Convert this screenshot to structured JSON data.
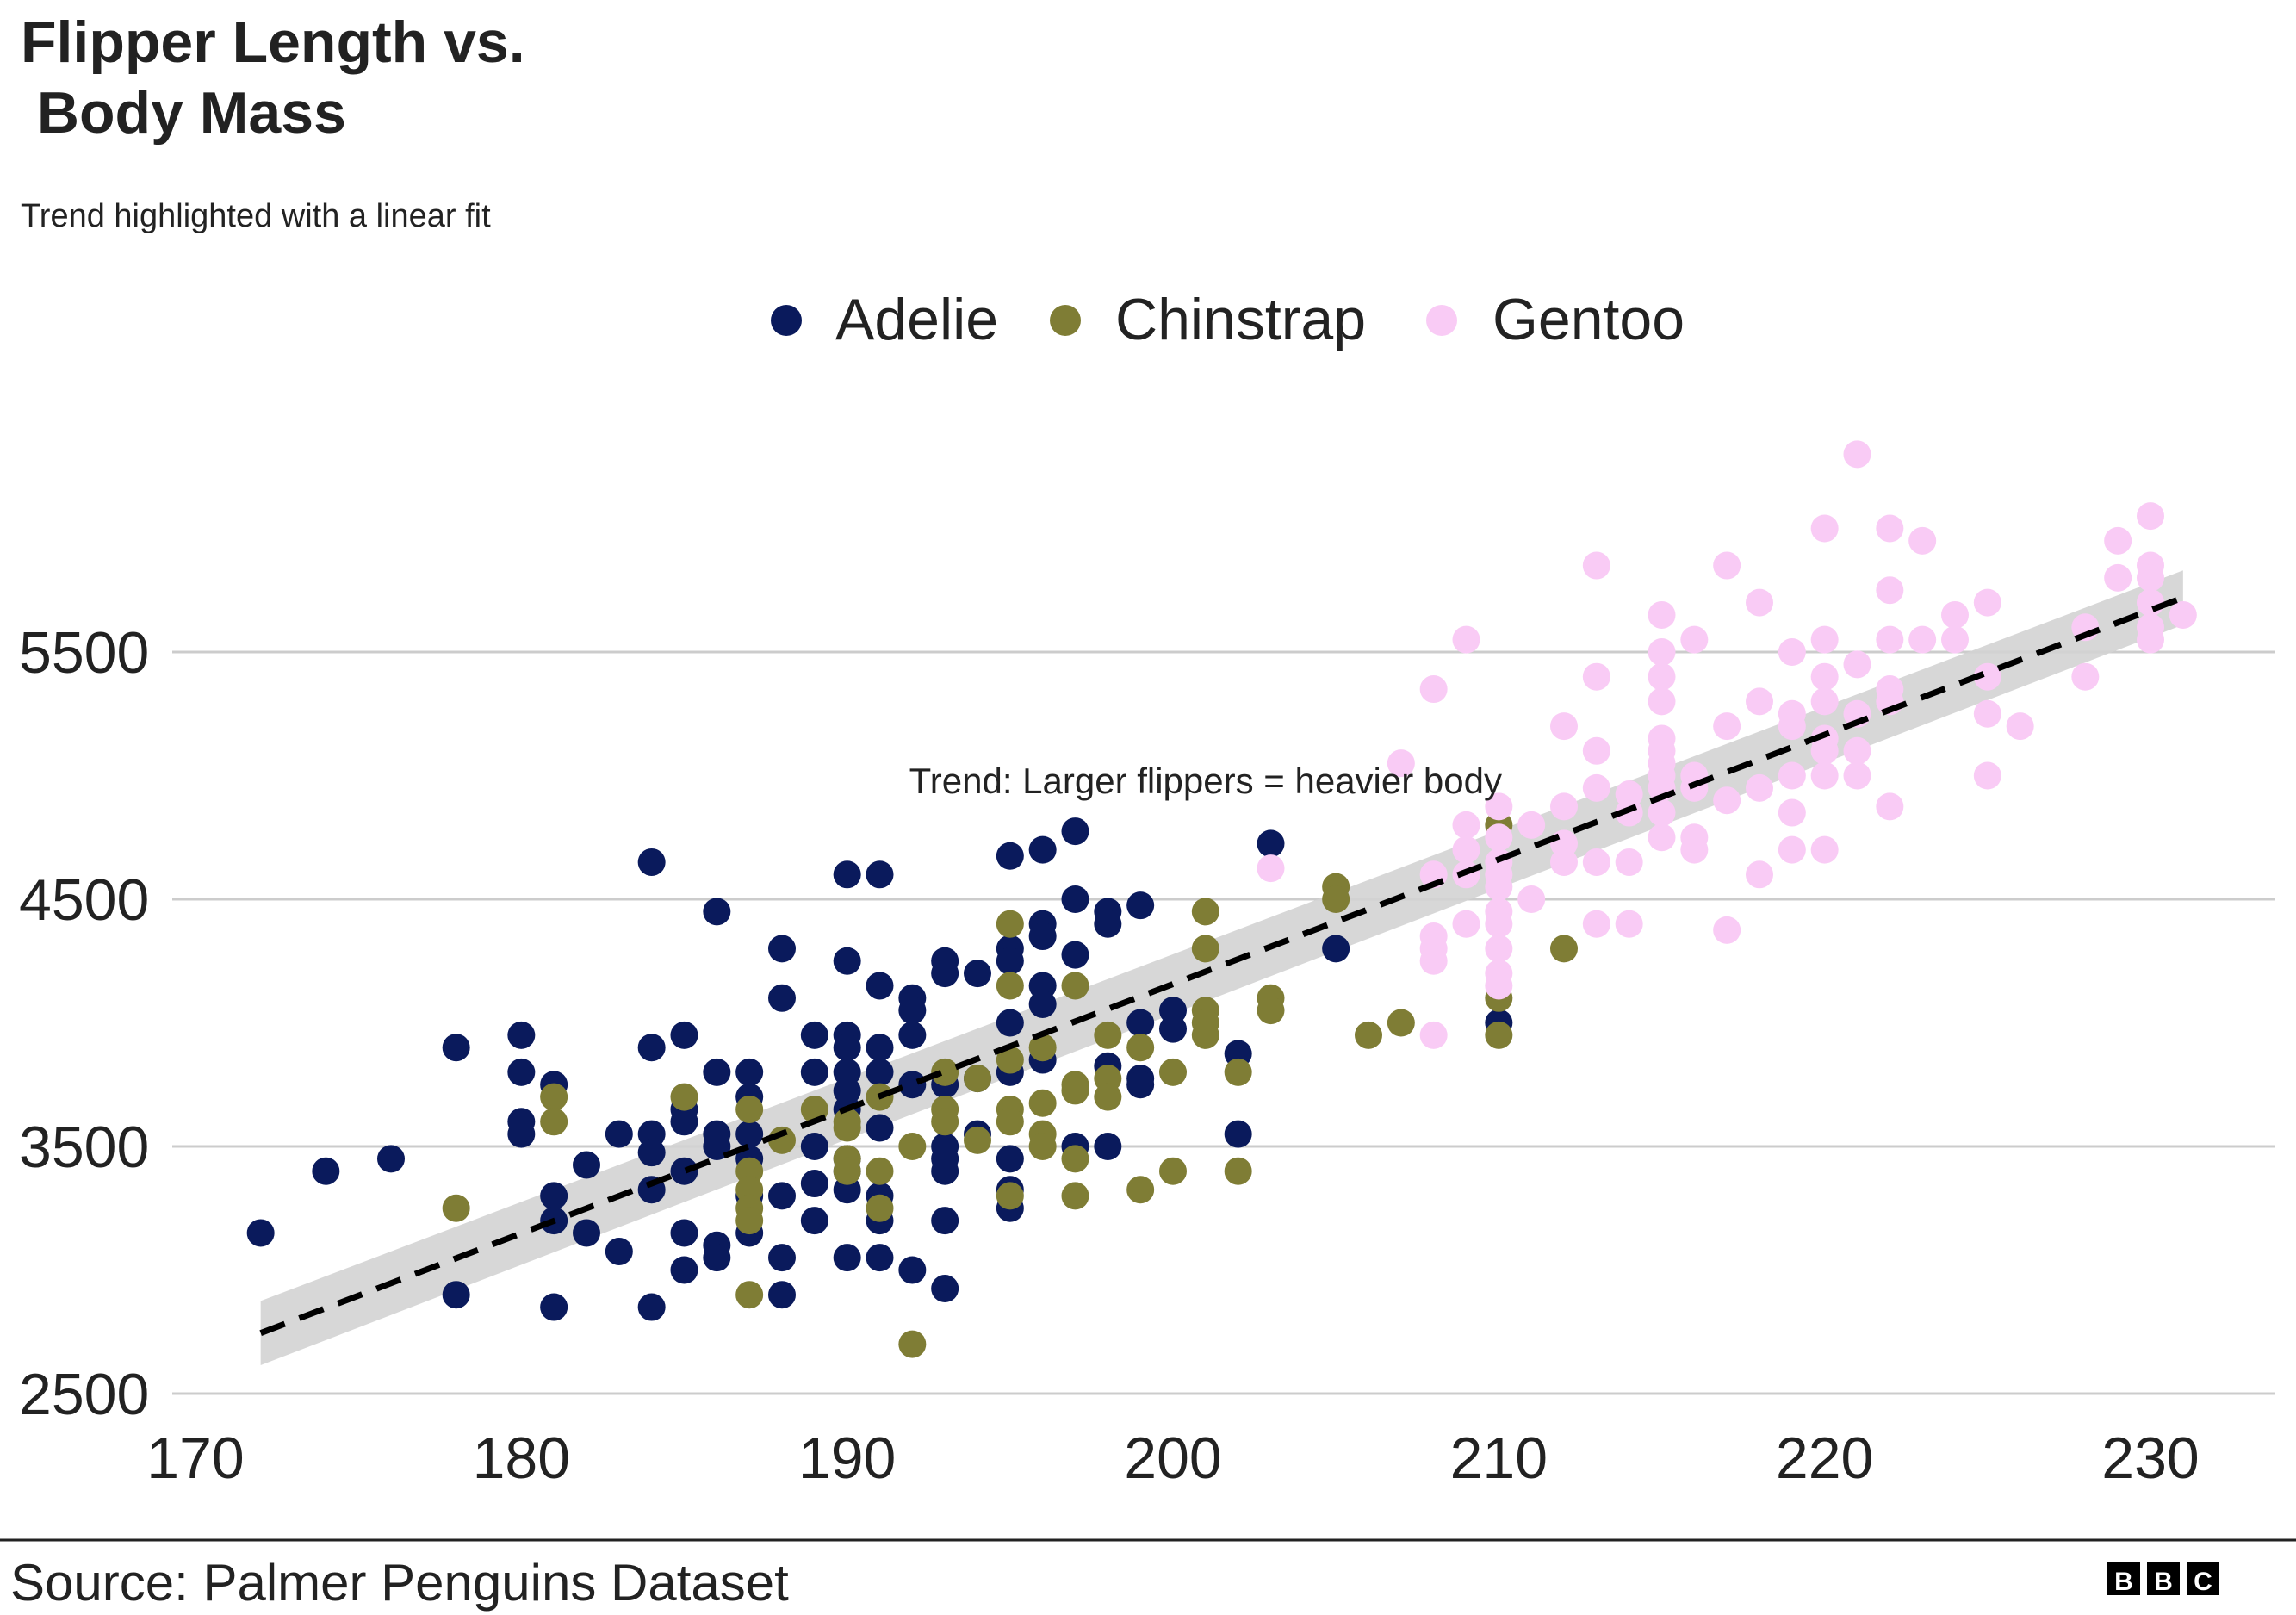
{
  "header": {
    "title_line1": "Flipper Length vs.",
    "title_line2": " Body Mass",
    "subtitle": "Trend highlighted with a linear fit"
  },
  "footer": {
    "source": "Source: Palmer Penguins Dataset",
    "logo_letters": [
      "B",
      "B",
      "C"
    ]
  },
  "colors": {
    "Adelie": "#0a1a5c",
    "Chinstrap": "#7f7d35",
    "Gentoo": "#f9cbf5",
    "grid": "#cccccc",
    "trend_line": "#000000",
    "confidence_band": "#d3d3d3"
  },
  "chart_data": {
    "type": "scatter",
    "title": "Flipper Length vs.  Body Mass",
    "subtitle": "Trend highlighted with a linear fit",
    "xlabel": "",
    "ylabel": "",
    "xlim": [
      170,
      234
    ],
    "ylim": [
      2500,
      6550
    ],
    "x_ticks": [
      170,
      180,
      190,
      200,
      210,
      220,
      230
    ],
    "y_ticks": [
      2500,
      3500,
      4500,
      5500
    ],
    "grid": "horizontal",
    "legend_position": "top-center",
    "annotation": {
      "text": "Trend: Larger flippers = heavier body",
      "x": 201,
      "y": 4950
    },
    "trend": {
      "type": "linear",
      "x": [
        172,
        231
      ],
      "y": [
        2745,
        5720
      ],
      "band_halfwidth": 100
    },
    "series": [
      {
        "name": "Adelie",
        "points": [
          [
            172,
            3150
          ],
          [
            174,
            3400
          ],
          [
            176,
            3450
          ],
          [
            178,
            3900
          ],
          [
            178,
            2900
          ],
          [
            180,
            3950
          ],
          [
            180,
            3800
          ],
          [
            180,
            3600
          ],
          [
            180,
            3550
          ],
          [
            181,
            3750
          ],
          [
            181,
            3300
          ],
          [
            181,
            3200
          ],
          [
            181,
            2850
          ],
          [
            182,
            3425
          ],
          [
            182,
            3150
          ],
          [
            183,
            3550
          ],
          [
            183,
            3075
          ],
          [
            184,
            4650
          ],
          [
            184,
            3900
          ],
          [
            184,
            3550
          ],
          [
            184,
            3475
          ],
          [
            184,
            3325
          ],
          [
            184,
            2850
          ],
          [
            185,
            3950
          ],
          [
            185,
            3650
          ],
          [
            185,
            3600
          ],
          [
            185,
            3400
          ],
          [
            185,
            3150
          ],
          [
            185,
            3000
          ],
          [
            186,
            4450
          ],
          [
            186,
            3800
          ],
          [
            186,
            3550
          ],
          [
            186,
            3500
          ],
          [
            186,
            3100
          ],
          [
            186,
            3050
          ],
          [
            187,
            3800
          ],
          [
            187,
            3700
          ],
          [
            187,
            3550
          ],
          [
            187,
            3450
          ],
          [
            187,
            3300
          ],
          [
            187,
            3150
          ],
          [
            188,
            4300
          ],
          [
            188,
            4100
          ],
          [
            188,
            3300
          ],
          [
            188,
            3050
          ],
          [
            188,
            2900
          ],
          [
            189,
            3950
          ],
          [
            189,
            3800
          ],
          [
            189,
            3500
          ],
          [
            189,
            3350
          ],
          [
            189,
            3200
          ],
          [
            190,
            4600
          ],
          [
            190,
            4250
          ],
          [
            190,
            3950
          ],
          [
            190,
            3900
          ],
          [
            190,
            3800
          ],
          [
            190,
            3725
          ],
          [
            190,
            3650
          ],
          [
            190,
            3450
          ],
          [
            190,
            3400
          ],
          [
            190,
            3325
          ],
          [
            190,
            3050
          ],
          [
            191,
            4600
          ],
          [
            191,
            4150
          ],
          [
            191,
            3900
          ],
          [
            191,
            3800
          ],
          [
            191,
            3575
          ],
          [
            191,
            3300
          ],
          [
            191,
            3200
          ],
          [
            191,
            3050
          ],
          [
            192,
            4100
          ],
          [
            192,
            4050
          ],
          [
            192,
            3950
          ],
          [
            192,
            3750
          ],
          [
            192,
            3000
          ],
          [
            193,
            4250
          ],
          [
            193,
            4200
          ],
          [
            193,
            3750
          ],
          [
            193,
            3500
          ],
          [
            193,
            3450
          ],
          [
            193,
            3400
          ],
          [
            193,
            3200
          ],
          [
            193,
            2925
          ],
          [
            194,
            4200
          ],
          [
            194,
            3775
          ],
          [
            194,
            3550
          ],
          [
            195,
            4675
          ],
          [
            195,
            4300
          ],
          [
            195,
            4250
          ],
          [
            195,
            4000
          ],
          [
            195,
            3800
          ],
          [
            195,
            3450
          ],
          [
            195,
            3325
          ],
          [
            195,
            3250
          ],
          [
            196,
            4700
          ],
          [
            196,
            4400
          ],
          [
            196,
            4350
          ],
          [
            196,
            4150
          ],
          [
            196,
            4075
          ],
          [
            196,
            3850
          ],
          [
            197,
            4775
          ],
          [
            197,
            4500
          ],
          [
            197,
            4275
          ],
          [
            197,
            3500
          ],
          [
            198,
            4450
          ],
          [
            198,
            4400
          ],
          [
            198,
            3825
          ],
          [
            198,
            3500
          ],
          [
            199,
            4475
          ],
          [
            199,
            4000
          ],
          [
            199,
            3775
          ],
          [
            199,
            3750
          ],
          [
            200,
            4050
          ],
          [
            200,
            3975
          ],
          [
            202,
            3875
          ],
          [
            202,
            3550
          ],
          [
            203,
            4725
          ],
          [
            205,
            4300
          ],
          [
            210,
            4000
          ]
        ]
      },
      {
        "name": "Chinstrap",
        "points": [
          [
            178,
            3250
          ],
          [
            181,
            3700
          ],
          [
            181,
            3600
          ],
          [
            185,
            3700
          ],
          [
            187,
            3650
          ],
          [
            187,
            3400
          ],
          [
            187,
            3325
          ],
          [
            187,
            3250
          ],
          [
            187,
            3200
          ],
          [
            187,
            2900
          ],
          [
            188,
            3525
          ],
          [
            189,
            3650
          ],
          [
            190,
            3600
          ],
          [
            190,
            3575
          ],
          [
            190,
            3450
          ],
          [
            190,
            3400
          ],
          [
            191,
            3700
          ],
          [
            191,
            3400
          ],
          [
            191,
            3250
          ],
          [
            192,
            3500
          ],
          [
            192,
            2700
          ],
          [
            193,
            3800
          ],
          [
            193,
            3650
          ],
          [
            193,
            3600
          ],
          [
            194,
            3775
          ],
          [
            194,
            3525
          ],
          [
            195,
            4400
          ],
          [
            195,
            4150
          ],
          [
            195,
            3850
          ],
          [
            195,
            3650
          ],
          [
            195,
            3600
          ],
          [
            195,
            3300
          ],
          [
            196,
            3900
          ],
          [
            196,
            3675
          ],
          [
            196,
            3550
          ],
          [
            196,
            3500
          ],
          [
            197,
            4150
          ],
          [
            197,
            3750
          ],
          [
            197,
            3725
          ],
          [
            197,
            3450
          ],
          [
            197,
            3300
          ],
          [
            198,
            3950
          ],
          [
            198,
            3775
          ],
          [
            198,
            3700
          ],
          [
            199,
            3900
          ],
          [
            199,
            3325
          ],
          [
            200,
            3800
          ],
          [
            200,
            3400
          ],
          [
            201,
            4450
          ],
          [
            201,
            4300
          ],
          [
            201,
            4050
          ],
          [
            201,
            4000
          ],
          [
            201,
            3950
          ],
          [
            202,
            3800
          ],
          [
            202,
            3400
          ],
          [
            203,
            4100
          ],
          [
            203,
            4050
          ],
          [
            205,
            4550
          ],
          [
            205,
            4500
          ],
          [
            206,
            3950
          ],
          [
            207,
            4000
          ],
          [
            210,
            4800
          ],
          [
            210,
            4100
          ],
          [
            210,
            3950
          ],
          [
            212,
            4300
          ]
        ]
      },
      {
        "name": "Gentoo",
        "points": [
          [
            203,
            4625
          ],
          [
            207,
            5050
          ],
          [
            208,
            5350
          ],
          [
            208,
            4600
          ],
          [
            208,
            4350
          ],
          [
            208,
            4300
          ],
          [
            208,
            4250
          ],
          [
            208,
            3950
          ],
          [
            209,
            5550
          ],
          [
            209,
            4800
          ],
          [
            209,
            4700
          ],
          [
            209,
            4600
          ],
          [
            209,
            4400
          ],
          [
            210,
            4875
          ],
          [
            210,
            4750
          ],
          [
            210,
            4650
          ],
          [
            210,
            4600
          ],
          [
            210,
            4550
          ],
          [
            210,
            4450
          ],
          [
            210,
            4400
          ],
          [
            210,
            4300
          ],
          [
            210,
            4200
          ],
          [
            210,
            4150
          ],
          [
            211,
            4800
          ],
          [
            211,
            4500
          ],
          [
            212,
            5200
          ],
          [
            212,
            4875
          ],
          [
            212,
            4725
          ],
          [
            212,
            4650
          ],
          [
            213,
            5850
          ],
          [
            213,
            5400
          ],
          [
            213,
            5100
          ],
          [
            213,
            4950
          ],
          [
            213,
            4650
          ],
          [
            213,
            4400
          ],
          [
            214,
            4925
          ],
          [
            214,
            4850
          ],
          [
            214,
            4650
          ],
          [
            214,
            4400
          ],
          [
            215,
            5650
          ],
          [
            215,
            5500
          ],
          [
            215,
            5400
          ],
          [
            215,
            5300
          ],
          [
            215,
            5150
          ],
          [
            215,
            5100
          ],
          [
            215,
            5050
          ],
          [
            215,
            5000
          ],
          [
            215,
            4950
          ],
          [
            215,
            4850
          ],
          [
            215,
            4750
          ],
          [
            216,
            5550
          ],
          [
            216,
            5000
          ],
          [
            216,
            4950
          ],
          [
            216,
            4750
          ],
          [
            216,
            4700
          ],
          [
            217,
            5850
          ],
          [
            217,
            5200
          ],
          [
            217,
            4900
          ],
          [
            217,
            4375
          ],
          [
            218,
            5700
          ],
          [
            218,
            5300
          ],
          [
            218,
            4950
          ],
          [
            218,
            4600
          ],
          [
            219,
            5500
          ],
          [
            219,
            5250
          ],
          [
            219,
            5200
          ],
          [
            219,
            5000
          ],
          [
            219,
            4850
          ],
          [
            219,
            4700
          ],
          [
            220,
            6000
          ],
          [
            220,
            5550
          ],
          [
            220,
            5400
          ],
          [
            220,
            5300
          ],
          [
            220,
            5150
          ],
          [
            220,
            5100
          ],
          [
            220,
            5000
          ],
          [
            220,
            4700
          ],
          [
            221,
            6300
          ],
          [
            221,
            5450
          ],
          [
            221,
            5250
          ],
          [
            221,
            5100
          ],
          [
            221,
            5000
          ],
          [
            222,
            6000
          ],
          [
            222,
            5750
          ],
          [
            222,
            5550
          ],
          [
            222,
            5350
          ],
          [
            222,
            5300
          ],
          [
            222,
            4875
          ],
          [
            223,
            5950
          ],
          [
            223,
            5550
          ],
          [
            224,
            5650
          ],
          [
            224,
            5550
          ],
          [
            225,
            5700
          ],
          [
            225,
            5400
          ],
          [
            225,
            5250
          ],
          [
            225,
            5000
          ],
          [
            226,
            5200
          ],
          [
            228,
            5600
          ],
          [
            228,
            5400
          ],
          [
            229,
            5950
          ],
          [
            229,
            5800
          ],
          [
            230,
            6050
          ],
          [
            230,
            5850
          ],
          [
            230,
            5800
          ],
          [
            230,
            5700
          ],
          [
            230,
            5600
          ],
          [
            230,
            5550
          ],
          [
            231,
            5650
          ]
        ]
      }
    ]
  }
}
